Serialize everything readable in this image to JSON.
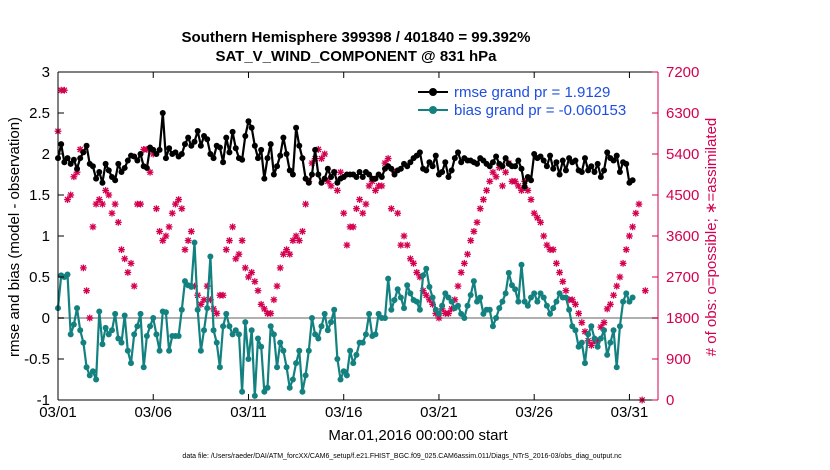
{
  "chart_data": {
    "type": "line",
    "title": "Southern Hemisphere 399398 / 401840 = 99.392%",
    "subtitle": "SAT_V_WIND_COMPONENT @ 831 hPa",
    "xlabel": "Mar.01,2016 00:00:00 start",
    "ylabel": "rmse and bias (model - observation)",
    "y2label": "# of obs: o=possible; ∗=assimilated",
    "xlim": [
      0,
      31.5
    ],
    "ylim": [
      -1,
      3
    ],
    "y2lim": [
      0,
      7200
    ],
    "x_ticks": [
      {
        "x": 0,
        "label": "03/01"
      },
      {
        "x": 5,
        "label": "03/06"
      },
      {
        "x": 10,
        "label": "03/11"
      },
      {
        "x": 15,
        "label": "03/16"
      },
      {
        "x": 20,
        "label": "03/21"
      },
      {
        "x": 25,
        "label": "03/26"
      },
      {
        "x": 30,
        "label": "03/31"
      }
    ],
    "y_ticks": [
      "-1",
      "-0.5",
      "0",
      "0.5",
      "1",
      "1.5",
      "2",
      "2.5",
      "3"
    ],
    "y_tick_values": [
      -1,
      -0.5,
      0,
      0.5,
      1,
      1.5,
      2,
      2.5,
      3
    ],
    "y2_ticks": [
      "0",
      "900",
      "1800",
      "2700",
      "3600",
      "4500",
      "5400",
      "6300",
      "7200"
    ],
    "y2_tick_values": [
      0,
      900,
      1800,
      2700,
      3600,
      4500,
      5400,
      6300,
      7200
    ],
    "legend_position": "top-right",
    "zero_line": true,
    "colors": {
      "rmse": "#000000",
      "bias": "#13817f",
      "obs": "#d4004f",
      "legend_text": "#1f4fe0",
      "zero_line": "#b0b0b0",
      "right_axis": "#d4004f"
    },
    "series": [
      {
        "name": "rmse grand pr = 1.9129",
        "axis": "left",
        "values": [
          1.95,
          2.12,
          1.9,
          1.95,
          1.88,
          1.93,
          1.82,
          1.95,
          2.02,
          2.1,
          1.88,
          1.85,
          1.7,
          1.78,
          1.65,
          1.88,
          1.8,
          1.72,
          1.68,
          1.88,
          1.78,
          1.83,
          1.92,
          1.98,
          1.97,
          1.92,
          2.0,
          1.85,
          1.83,
          2.08,
          2.05,
          2.0,
          2.05,
          2.5,
          1.95,
          2.07,
          2.0,
          2.02,
          1.97,
          2.0,
          2.12,
          2.2,
          2.1,
          2.15,
          2.28,
          2.1,
          2.22,
          2.18,
          2.0,
          1.95,
          2.1,
          2.08,
          1.9,
          2.2,
          2.02,
          2.27,
          2.07,
          1.95,
          1.93,
          2.22,
          2.4,
          2.32,
          2.1,
          1.95,
          2.05,
          1.7,
          1.95,
          2.12,
          1.75,
          1.85,
          1.98,
          2.2,
          2.0,
          1.8,
          1.75,
          2.32,
          2.1,
          1.95,
          1.7,
          1.65,
          1.75,
          2.05,
          1.75,
          1.65,
          1.7,
          1.82,
          1.72,
          1.78,
          1.65,
          1.7,
          1.72,
          1.75,
          1.75,
          1.75,
          1.72,
          1.78,
          1.72,
          1.78,
          1.75,
          1.7,
          1.7,
          1.75,
          1.72,
          1.82,
          1.85,
          1.82,
          1.75,
          1.8,
          1.82,
          1.88,
          1.85,
          1.9,
          1.95,
          1.98,
          2.02,
          1.82,
          1.8,
          1.9,
          1.85,
          1.98,
          1.75,
          1.78,
          1.9,
          1.72,
          1.8,
          1.95,
          2.02,
          1.9,
          1.95,
          1.92,
          1.92,
          1.9,
          1.88,
          1.95,
          1.92,
          1.88,
          1.85,
          1.9,
          1.97,
          1.88,
          1.85,
          1.95,
          1.88,
          1.85,
          1.85,
          1.92,
          1.82,
          1.6,
          1.72,
          1.68,
          2.0,
          1.95,
          1.97,
          1.92,
          1.85,
          1.98,
          1.82,
          1.9,
          1.75,
          1.92,
          1.8,
          1.95,
          1.9,
          1.92,
          1.8,
          1.78,
          1.95,
          1.8,
          1.85,
          1.78,
          1.88,
          1.72,
          1.8,
          2.02,
          1.95,
          1.92,
          1.98,
          1.78,
          1.9,
          1.88,
          1.65,
          1.68
        ]
      },
      {
        "name": "bias grand pr = -0.060153",
        "axis": "left",
        "values": [
          0.12,
          0.52,
          0.5,
          0.53,
          -0.2,
          -0.08,
          0.12,
          -0.15,
          -0.3,
          -0.6,
          -0.7,
          -0.65,
          -0.75,
          0.08,
          -0.32,
          -0.12,
          -0.2,
          -0.15,
          0.05,
          -0.25,
          -0.3,
          0.03,
          -0.4,
          -0.55,
          -0.2,
          -0.1,
          0.05,
          -0.6,
          -0.22,
          -0.1,
          0.0,
          -0.2,
          -0.4,
          0.08,
          0.07,
          -0.4,
          -0.22,
          -0.22,
          -0.22,
          0.1,
          0.45,
          0.4,
          0.38,
          0.92,
          0.1,
          -0.4,
          -0.15,
          0.12,
          0.75,
          -0.15,
          -0.3,
          -0.6,
          -0.1,
          0.05,
          -0.1,
          -0.2,
          -0.15,
          -0.2,
          -0.9,
          -0.05,
          -0.5,
          -0.15,
          -0.95,
          -0.25,
          -0.35,
          -0.9,
          -0.85,
          -0.1,
          -0.2,
          -0.6,
          -0.3,
          -0.4,
          -0.6,
          -0.85,
          -0.75,
          -0.55,
          -0.4,
          -0.9,
          -0.7,
          -0.4,
          0.0,
          -0.2,
          -0.25,
          -0.1,
          0.05,
          -0.15,
          -0.05,
          0.1,
          -0.5,
          -0.75,
          -0.65,
          -0.7,
          -0.4,
          -0.55,
          -0.45,
          -0.3,
          -0.3,
          -0.2,
          0.05,
          -0.22,
          -0.2,
          0.05,
          0.0,
          0.0,
          0.48,
          0.1,
          0.22,
          0.35,
          0.25,
          0.12,
          0.4,
          0.3,
          0.22,
          0.2,
          0.1,
          0.52,
          0.6,
          0.38,
          0.25,
          0.1,
          0.05,
          0.15,
          0.3,
          0.25,
          0.2,
          0.12,
          0.15,
          0.05,
          0.0,
          0.15,
          0.28,
          0.45,
          0.2,
          0.25,
          0.05,
          0.1,
          0.1,
          -0.1,
          0.0,
          0.12,
          0.2,
          0.3,
          0.55,
          0.4,
          0.35,
          0.2,
          0.65,
          0.2,
          0.15,
          0.25,
          0.3,
          0.2,
          0.3,
          0.25,
          0.15,
          0.05,
          0.12,
          0.2,
          0.3,
          0.25,
          0.25,
          0.1,
          -0.1,
          -0.15,
          -0.35,
          -0.3,
          -0.55,
          -0.2,
          -0.1,
          -0.25,
          -0.35,
          -0.25,
          -0.15,
          -0.45,
          -0.3,
          -0.15,
          -0.6,
          -0.1,
          0.2,
          0.3,
          0.2,
          0.25
        ]
      },
      {
        "name": "obs",
        "axis": "right",
        "values": [
          5900,
          6800,
          6800,
          4400,
          4500,
          4900,
          5000,
          5500,
          2900,
          2400,
          1800,
          3800,
          4300,
          4400,
          4300,
          4600,
          4500,
          4100,
          4300,
          3900,
          3300,
          3100,
          2800,
          3000,
          2500,
          4300,
          4300,
          5500,
          5500,
          5000,
          5400,
          4200,
          3700,
          3500,
          3600,
          3800,
          4100,
          4300,
          4400,
          4200,
          3300,
          3500,
          3700,
          2500,
          2300,
          2100,
          2200,
          2500,
          2200,
          2000,
          1900,
          2300,
          2300,
          3300,
          3500,
          3800,
          3100,
          3200,
          3500,
          2900,
          2700,
          2800,
          2600,
          2400,
          2100,
          2000,
          1900,
          1900,
          2200,
          2500,
          2900,
          3200,
          3300,
          3200,
          3500,
          3600,
          3500,
          3700,
          4300,
          4800,
          5200,
          5300,
          5500,
          5300,
          5400,
          4800,
          4700,
          5000,
          4600,
          5000,
          4100,
          3400,
          3800,
          3800,
          4200,
          4400,
          4100,
          4300,
          4700,
          4800,
          4600,
          4700,
          4700,
          5200,
          5300,
          4200,
          5000,
          4100,
          3400,
          3600,
          3400,
          3100,
          3000,
          2800,
          2700,
          2400,
          2300,
          2200,
          2100,
          1900,
          1800,
          2000,
          1900,
          1900,
          2000,
          2200,
          2500,
          2800,
          3000,
          3200,
          3500,
          3700,
          3900,
          4200,
          4400,
          4600,
          4800,
          5000,
          4900,
          5100,
          4700,
          5000,
          5200,
          4800,
          4800,
          4700,
          4600,
          4800,
          4600,
          4400,
          4100,
          4000,
          3900,
          3600,
          3400,
          3300,
          3300,
          3000,
          2800,
          2600,
          2400,
          2200,
          2200,
          2100,
          1900,
          1700,
          1500,
          1300,
          1200,
          1300,
          1300,
          1600,
          1700,
          2000,
          2100,
          2300,
          2500,
          2700,
          3000,
          3300,
          3600,
          3800,
          4100,
          4300,
          0,
          2400
        ]
      }
    ],
    "footer": "data file: /Users/raeder/DAI/ATM_forcXX/CAM6_setup/f.e21.FHIST_BGC.f09_025.CAM6assim.011/Diags_NTrS_2016-03/obs_diag_output.nc"
  }
}
